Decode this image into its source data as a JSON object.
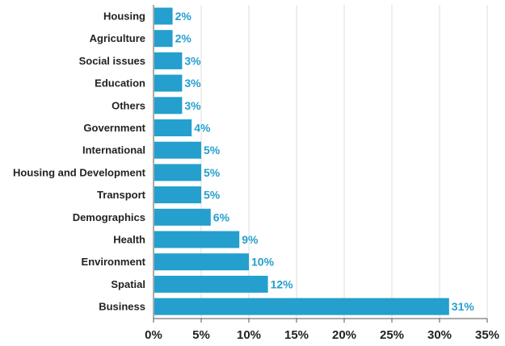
{
  "chart_data": {
    "type": "bar",
    "orientation": "horizontal",
    "categories": [
      "Housing",
      "Agriculture",
      "Social issues",
      "Education",
      "Others",
      "Government",
      "International",
      "Housing and Development",
      "Transport",
      "Demographics",
      "Health",
      "Environment",
      "Spatial",
      "Business"
    ],
    "values": [
      2,
      2,
      3,
      3,
      3,
      4,
      5,
      5,
      5,
      6,
      9,
      10,
      12,
      31
    ],
    "value_labels": [
      "2%",
      "2%",
      "3%",
      "3%",
      "3%",
      "4%",
      "5%",
      "5%",
      "5%",
      "6%",
      "9%",
      "10%",
      "12%",
      "31%"
    ],
    "x_ticks": [
      0,
      5,
      10,
      15,
      20,
      25,
      30,
      35
    ],
    "x_tick_labels": [
      "0%",
      "5%",
      "10%",
      "15%",
      "20%",
      "25%",
      "30%",
      "35%"
    ],
    "xlim": [
      0,
      35
    ],
    "title": "",
    "xlabel": "",
    "ylabel": "",
    "grid": "vertical",
    "legend": "none",
    "colors": {
      "bar": "#249fce",
      "value_label": "#249fce",
      "grid": "#dddddd",
      "axis": "#555555",
      "text": "#222222"
    }
  }
}
